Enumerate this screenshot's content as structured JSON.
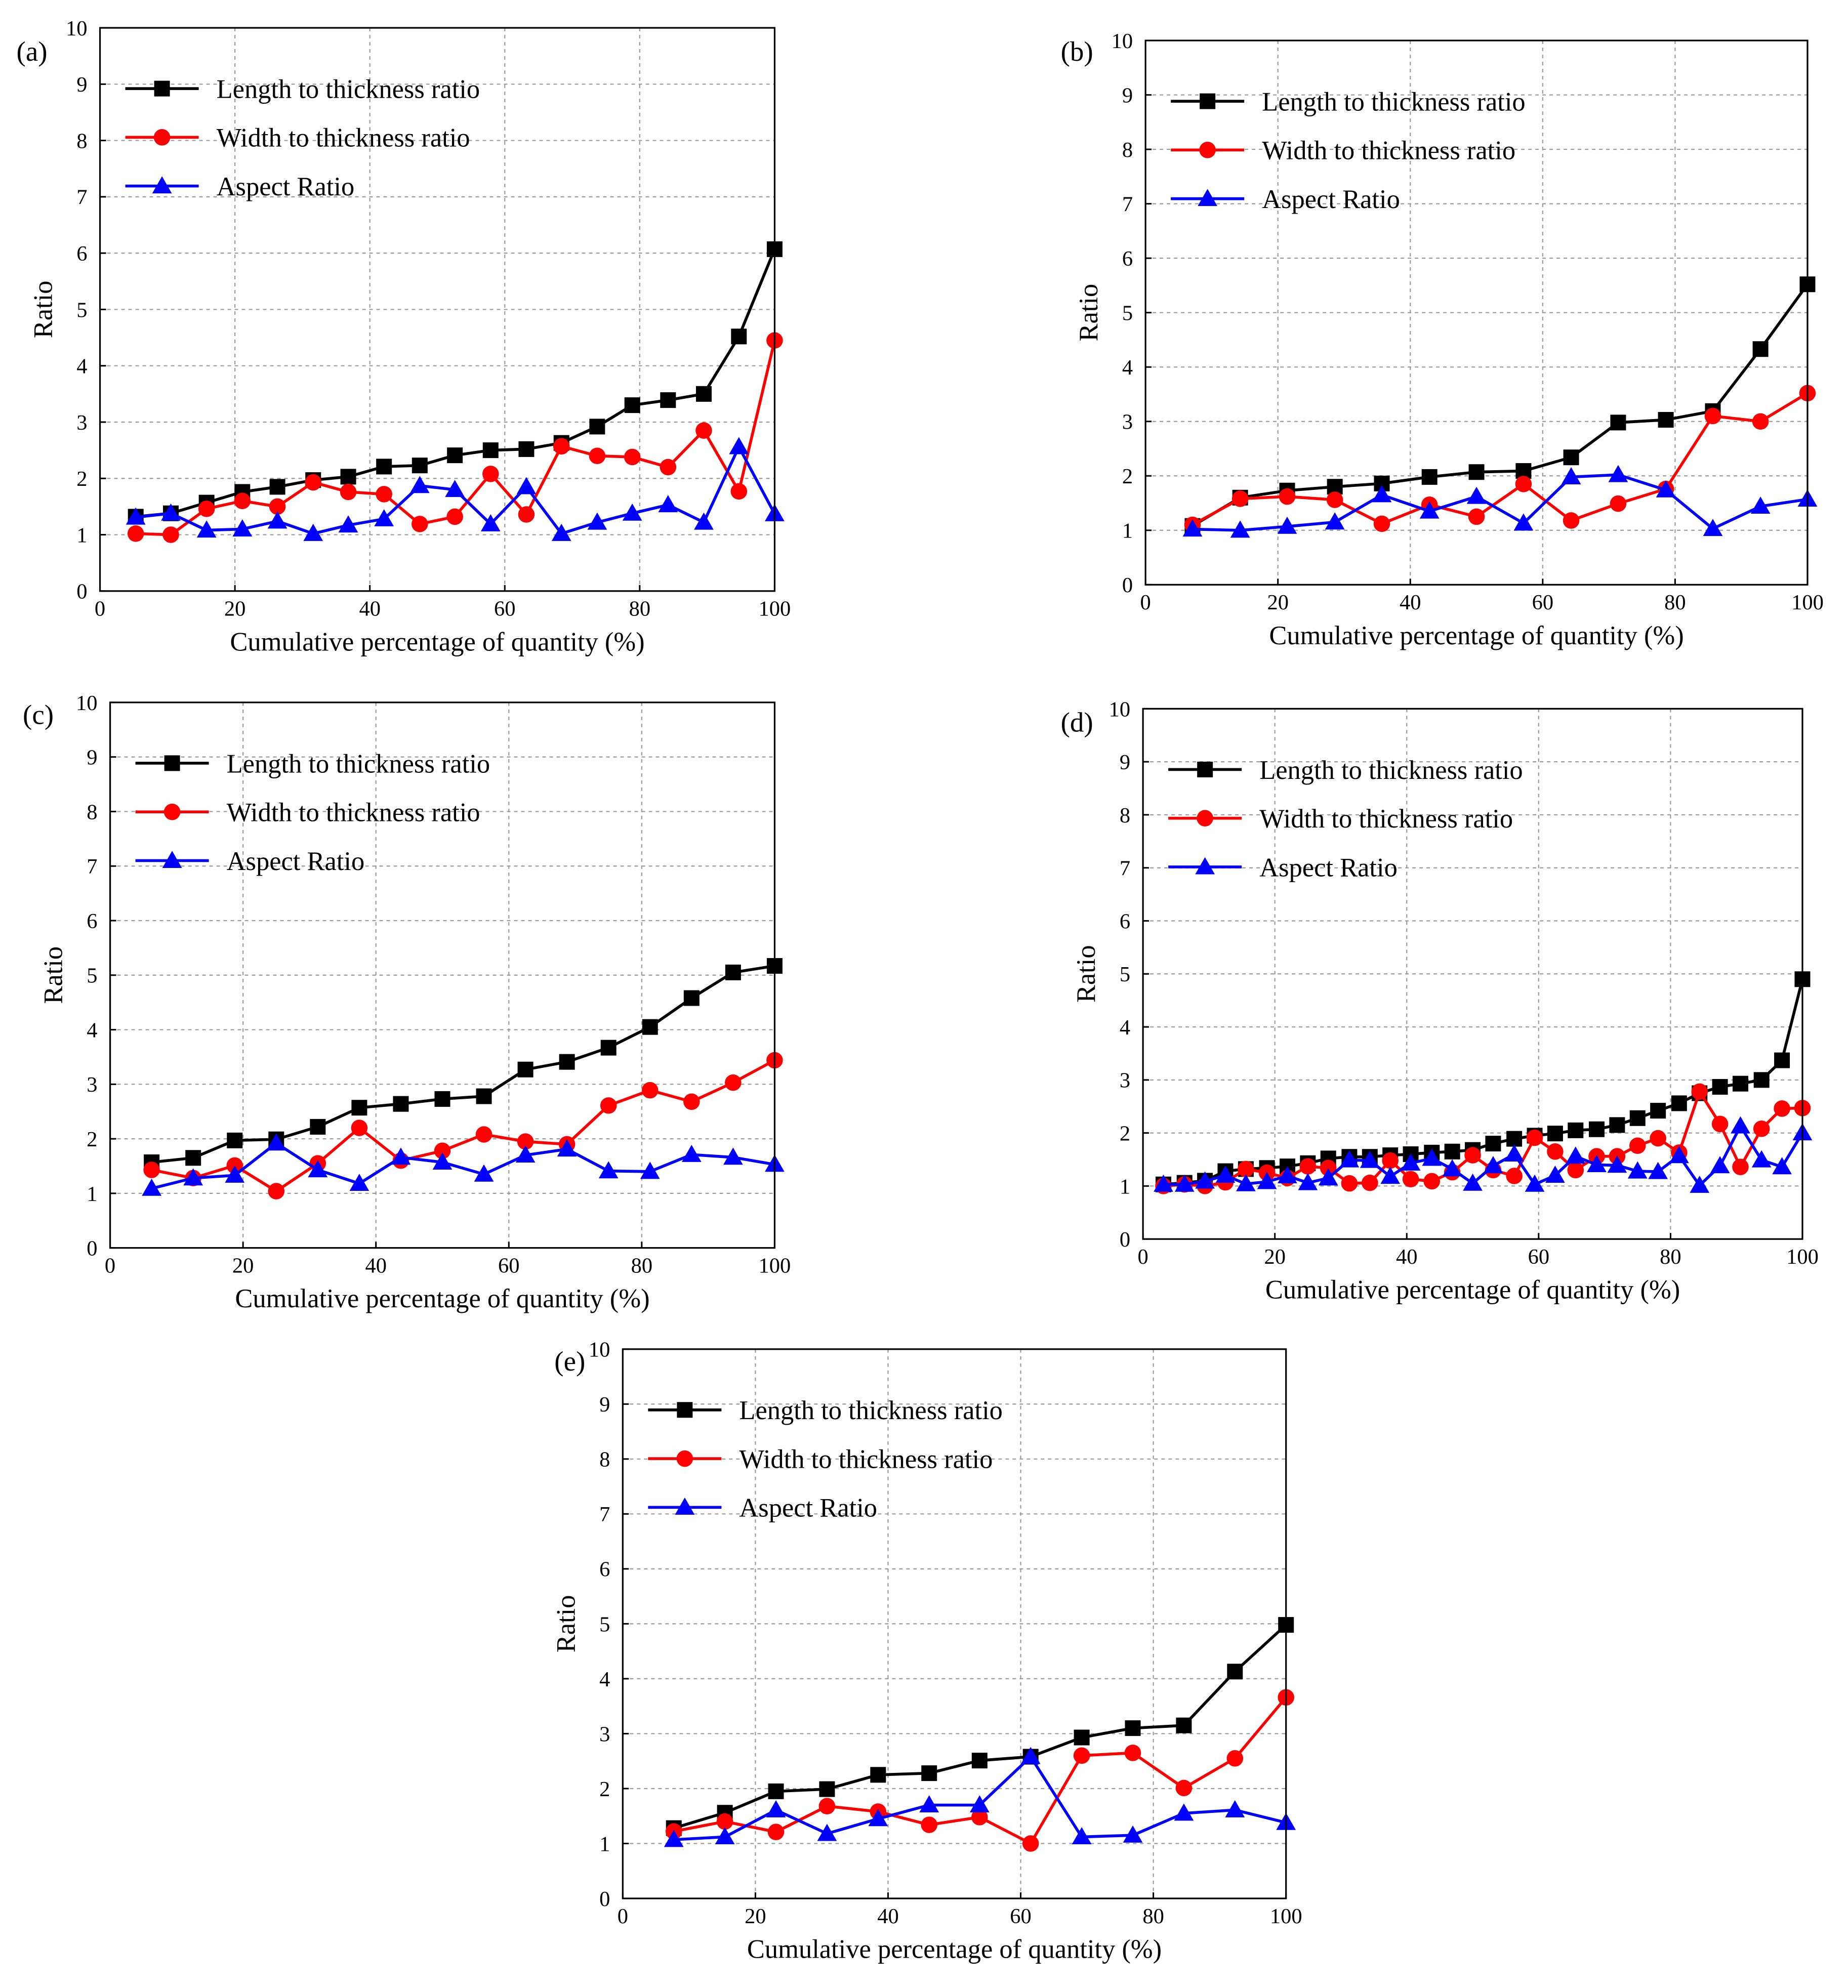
{
  "figure": {
    "panel_labels": [
      "(a)",
      "(b)",
      "(c)",
      "(d)",
      "(e)"
    ]
  },
  "colors": {
    "length": "#000000",
    "width": "#ff0000",
    "aspect": "#0000ff",
    "grid": "#9a9a9a"
  },
  "chart_data": [
    {
      "panel": "(a)",
      "type": "line",
      "xlabel": "Cumulative percentage of quantity (%)",
      "ylabel": "Ratio",
      "xlim": [
        0,
        100
      ],
      "ylim": [
        0,
        10
      ],
      "xticks": [
        0,
        20,
        40,
        60,
        80,
        100
      ],
      "yticks": [
        0,
        1,
        2,
        3,
        4,
        5,
        6,
        7,
        8,
        9,
        10
      ],
      "grid": true,
      "legend_position": "top-left",
      "series": [
        {
          "name": "Length to thickness ratio",
          "marker": "square",
          "color": "#000000",
          "x": [
            5.3,
            10.5,
            15.8,
            21.1,
            26.3,
            31.6,
            36.8,
            42.1,
            47.4,
            52.6,
            57.9,
            63.2,
            68.4,
            73.7,
            78.9,
            84.2,
            89.5,
            94.7,
            100
          ],
          "y": [
            1.32,
            1.38,
            1.57,
            1.76,
            1.85,
            1.97,
            2.03,
            2.21,
            2.23,
            2.41,
            2.5,
            2.52,
            2.63,
            2.92,
            3.3,
            3.39,
            3.5,
            4.52,
            6.07
          ]
        },
        {
          "name": "Width to thickness ratio",
          "marker": "circle",
          "color": "#ff0000",
          "x": [
            5.3,
            10.5,
            15.8,
            21.1,
            26.3,
            31.6,
            36.8,
            42.1,
            47.4,
            52.6,
            57.9,
            63.2,
            68.4,
            73.7,
            78.9,
            84.2,
            89.5,
            94.7,
            100
          ],
          "y": [
            1.02,
            1.0,
            1.46,
            1.6,
            1.5,
            1.93,
            1.76,
            1.72,
            1.19,
            1.32,
            2.08,
            1.36,
            2.57,
            2.4,
            2.38,
            2.2,
            2.85,
            1.77,
            4.45
          ]
        },
        {
          "name": "Aspect Ratio",
          "marker": "triangle",
          "color": "#0000ff",
          "x": [
            5.3,
            10.5,
            15.8,
            21.1,
            26.3,
            31.6,
            36.8,
            42.1,
            47.4,
            52.6,
            57.9,
            63.2,
            68.4,
            73.7,
            78.9,
            84.2,
            89.5,
            94.7,
            100
          ],
          "y": [
            1.31,
            1.38,
            1.08,
            1.1,
            1.24,
            1.02,
            1.17,
            1.28,
            1.87,
            1.8,
            1.19,
            1.85,
            1.02,
            1.22,
            1.38,
            1.53,
            1.22,
            2.56,
            1.37
          ]
        }
      ]
    },
    {
      "panel": "(b)",
      "type": "line",
      "xlabel": "Cumulative percentage of quantity (%)",
      "ylabel": "Ratio",
      "xlim": [
        0,
        100
      ],
      "ylim": [
        0,
        10
      ],
      "xticks": [
        0,
        20,
        40,
        60,
        80,
        100
      ],
      "yticks": [
        0,
        1,
        2,
        3,
        4,
        5,
        6,
        7,
        8,
        9,
        10
      ],
      "grid": true,
      "legend_position": "top-left",
      "series": [
        {
          "name": "Length to thickness ratio",
          "marker": "square",
          "color": "#000000",
          "x": [
            7.1,
            14.3,
            21.4,
            28.6,
            35.7,
            42.9,
            50.0,
            57.1,
            64.3,
            71.4,
            78.6,
            85.7,
            92.9,
            100
          ],
          "y": [
            1.08,
            1.6,
            1.73,
            1.8,
            1.86,
            1.98,
            2.07,
            2.09,
            2.34,
            2.98,
            3.03,
            3.19,
            4.33,
            5.52
          ]
        },
        {
          "name": "Width to thickness ratio",
          "marker": "circle",
          "color": "#ff0000",
          "x": [
            7.1,
            14.3,
            21.4,
            28.6,
            35.7,
            42.9,
            50.0,
            57.1,
            64.3,
            71.4,
            78.6,
            85.7,
            92.9,
            100
          ],
          "y": [
            1.1,
            1.58,
            1.62,
            1.56,
            1.12,
            1.47,
            1.25,
            1.85,
            1.18,
            1.49,
            1.76,
            3.1,
            3.0,
            3.52
          ]
        },
        {
          "name": "Aspect Ratio",
          "marker": "triangle",
          "color": "#0000ff",
          "x": [
            7.1,
            14.3,
            21.4,
            28.6,
            35.7,
            42.9,
            50.0,
            57.1,
            64.3,
            71.4,
            78.6,
            85.7,
            92.9,
            100
          ],
          "y": [
            1.02,
            1.0,
            1.07,
            1.15,
            1.65,
            1.35,
            1.62,
            1.13,
            1.98,
            2.02,
            1.74,
            1.03,
            1.44,
            1.57
          ]
        }
      ]
    },
    {
      "panel": "(c)",
      "type": "line",
      "xlabel": "Cumulative percentage of quantity (%)",
      "ylabel": "Ratio",
      "xlim": [
        0,
        100
      ],
      "ylim": [
        0,
        10
      ],
      "xticks": [
        0,
        20,
        40,
        60,
        80,
        100
      ],
      "yticks": [
        0,
        1,
        2,
        3,
        4,
        5,
        6,
        7,
        8,
        9,
        10
      ],
      "grid": true,
      "legend_position": "top-left",
      "series": [
        {
          "name": "Length to thickness ratio",
          "marker": "square",
          "color": "#000000",
          "x": [
            6.25,
            12.5,
            18.75,
            25,
            31.25,
            37.5,
            43.75,
            50,
            56.25,
            62.5,
            68.75,
            75,
            81.25,
            87.5,
            93.75,
            100
          ],
          "y": [
            1.57,
            1.65,
            1.97,
            1.99,
            2.22,
            2.57,
            2.64,
            2.73,
            2.78,
            3.27,
            3.41,
            3.67,
            4.05,
            4.58,
            5.05,
            5.17
          ]
        },
        {
          "name": "Width to thickness ratio",
          "marker": "circle",
          "color": "#ff0000",
          "x": [
            6.25,
            12.5,
            18.75,
            25,
            31.25,
            37.5,
            43.75,
            50,
            56.25,
            62.5,
            68.75,
            75,
            81.25,
            87.5,
            93.75,
            100
          ],
          "y": [
            1.43,
            1.28,
            1.51,
            1.04,
            1.55,
            2.2,
            1.6,
            1.78,
            2.08,
            1.95,
            1.9,
            2.61,
            2.89,
            2.68,
            3.03,
            3.44
          ]
        },
        {
          "name": "Aspect Ratio",
          "marker": "triangle",
          "color": "#0000ff",
          "x": [
            6.25,
            12.5,
            18.75,
            25,
            31.25,
            37.5,
            43.75,
            50,
            56.25,
            62.5,
            68.75,
            75,
            81.25,
            87.5,
            93.75,
            100
          ],
          "y": [
            1.09,
            1.28,
            1.33,
            1.92,
            1.43,
            1.18,
            1.66,
            1.57,
            1.35,
            1.7,
            1.81,
            1.41,
            1.4,
            1.71,
            1.66,
            1.53
          ]
        }
      ]
    },
    {
      "panel": "(d)",
      "type": "line",
      "xlabel": "Cumulative percentage of quantity (%)",
      "ylabel": "Ratio",
      "xlim": [
        0,
        100
      ],
      "ylim": [
        0,
        10
      ],
      "xticks": [
        0,
        20,
        40,
        60,
        80,
        100
      ],
      "yticks": [
        0,
        1,
        2,
        3,
        4,
        5,
        6,
        7,
        8,
        9,
        10
      ],
      "grid": true,
      "legend_position": "top-left",
      "series": [
        {
          "name": "Length to thickness ratio",
          "marker": "square",
          "color": "#000000",
          "x": [
            3.1,
            6.3,
            9.4,
            12.5,
            15.6,
            18.8,
            21.9,
            25.0,
            28.1,
            31.3,
            34.4,
            37.5,
            40.6,
            43.8,
            46.9,
            50.0,
            53.1,
            56.3,
            59.4,
            62.5,
            65.6,
            68.8,
            71.9,
            75.0,
            78.1,
            81.3,
            84.4,
            87.5,
            90.6,
            93.8,
            96.9,
            100
          ],
          "y": [
            1.03,
            1.06,
            1.1,
            1.28,
            1.32,
            1.34,
            1.37,
            1.43,
            1.52,
            1.55,
            1.55,
            1.58,
            1.6,
            1.63,
            1.65,
            1.68,
            1.8,
            1.89,
            1.95,
            1.99,
            2.05,
            2.07,
            2.15,
            2.28,
            2.42,
            2.56,
            2.75,
            2.87,
            2.93,
            3.0,
            3.37,
            4.9
          ]
        },
        {
          "name": "Width to thickness ratio",
          "marker": "circle",
          "color": "#ff0000",
          "x": [
            3.1,
            6.3,
            9.4,
            12.5,
            15.6,
            18.8,
            21.9,
            25.0,
            28.1,
            31.3,
            34.4,
            37.5,
            40.6,
            43.8,
            46.9,
            50.0,
            53.1,
            56.3,
            59.4,
            62.5,
            65.6,
            68.8,
            71.9,
            75.0,
            78.1,
            81.3,
            84.4,
            87.5,
            90.6,
            93.8,
            96.9,
            100
          ],
          "y": [
            1.0,
            1.03,
            1.0,
            1.07,
            1.32,
            1.25,
            1.15,
            1.37,
            1.34,
            1.05,
            1.06,
            1.48,
            1.13,
            1.09,
            1.26,
            1.58,
            1.3,
            1.19,
            1.91,
            1.65,
            1.3,
            1.56,
            1.56,
            1.76,
            1.9,
            1.63,
            2.78,
            2.17,
            1.36,
            2.08,
            2.46,
            2.47
          ]
        },
        {
          "name": "Aspect Ratio",
          "marker": "triangle",
          "color": "#0000ff",
          "x": [
            3.1,
            6.3,
            9.4,
            12.5,
            15.6,
            18.8,
            21.9,
            25.0,
            28.1,
            31.3,
            34.4,
            37.5,
            40.6,
            43.8,
            46.9,
            50.0,
            53.1,
            56.3,
            59.4,
            62.5,
            65.6,
            68.8,
            71.9,
            75.0,
            78.1,
            81.3,
            84.4,
            87.5,
            90.6,
            93.8,
            96.9,
            100
          ],
          "y": [
            1.03,
            1.03,
            1.09,
            1.2,
            1.04,
            1.08,
            1.19,
            1.06,
            1.15,
            1.49,
            1.48,
            1.18,
            1.43,
            1.52,
            1.32,
            1.05,
            1.38,
            1.6,
            1.03,
            1.2,
            1.56,
            1.4,
            1.39,
            1.28,
            1.27,
            1.57,
            1.01,
            1.38,
            2.13,
            1.49,
            1.36,
            2.0
          ]
        }
      ]
    },
    {
      "panel": "(e)",
      "type": "line",
      "xlabel": "Cumulative percentage of quantity (%)",
      "ylabel": "Ratio",
      "xlim": [
        0,
        100
      ],
      "ylim": [
        0,
        10
      ],
      "xticks": [
        0,
        20,
        40,
        60,
        80,
        100
      ],
      "yticks": [
        0,
        1,
        2,
        3,
        4,
        5,
        6,
        7,
        8,
        9,
        10
      ],
      "grid": true,
      "legend_position": "top-left",
      "series": [
        {
          "name": "Length to thickness ratio",
          "marker": "square",
          "color": "#000000",
          "x": [
            7.7,
            15.4,
            23.1,
            30.8,
            38.5,
            46.2,
            53.8,
            61.5,
            69.2,
            76.9,
            84.6,
            92.3,
            100
          ],
          "y": [
            1.28,
            1.56,
            1.95,
            1.99,
            2.25,
            2.28,
            2.51,
            2.58,
            2.93,
            3.1,
            3.15,
            4.13,
            4.98
          ]
        },
        {
          "name": "Width to thickness ratio",
          "marker": "circle",
          "color": "#ff0000",
          "x": [
            7.7,
            15.4,
            23.1,
            30.8,
            38.5,
            46.2,
            53.8,
            61.5,
            69.2,
            76.9,
            84.6,
            92.3,
            100
          ],
          "y": [
            1.22,
            1.4,
            1.21,
            1.68,
            1.58,
            1.34,
            1.48,
            1.0,
            2.6,
            2.65,
            2.01,
            2.55,
            3.66
          ]
        },
        {
          "name": "Aspect Ratio",
          "marker": "triangle",
          "color": "#0000ff",
          "x": [
            7.7,
            15.4,
            23.1,
            30.8,
            38.5,
            46.2,
            53.8,
            61.5,
            69.2,
            76.9,
            84.6,
            92.3,
            100
          ],
          "y": [
            1.07,
            1.12,
            1.61,
            1.18,
            1.45,
            1.7,
            1.7,
            2.58,
            1.12,
            1.15,
            1.55,
            1.61,
            1.38
          ]
        }
      ]
    }
  ]
}
